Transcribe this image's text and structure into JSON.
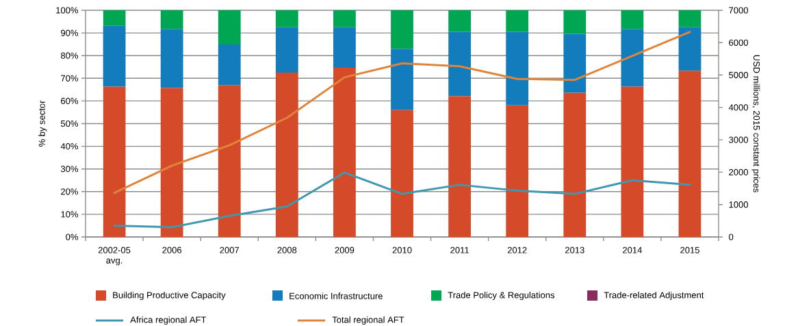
{
  "chart_data": {
    "type": "bar",
    "stacked": true,
    "categories": [
      "2002-05 avg.",
      "2006",
      "2007",
      "2008",
      "2009",
      "2010",
      "2011",
      "2012",
      "2013",
      "2014",
      "2015"
    ],
    "series": [
      {
        "name": "Building Productive Capacity",
        "color": "#d54b2a",
        "values": [
          66.3,
          65.7,
          67.0,
          72.5,
          74.6,
          56.0,
          62.1,
          58.1,
          63.6,
          66.3,
          73.3
        ]
      },
      {
        "name": "Economic Infrastructure",
        "color": "#127cbd",
        "values": [
          26.8,
          26.1,
          17.9,
          20.0,
          17.9,
          27.0,
          28.3,
          32.3,
          26.0,
          25.5,
          19.2
        ]
      },
      {
        "name": "Trade Policy & Regulations",
        "color": "#00a651",
        "values": [
          6.9,
          8.2,
          15.1,
          7.5,
          7.5,
          17.0,
          9.6,
          9.6,
          10.4,
          8.2,
          7.5
        ]
      },
      {
        "name": "Trade-related Adjustment",
        "color": "#8b2d5a",
        "values": [
          0,
          0,
          0,
          0,
          0,
          0,
          0,
          0,
          0,
          0,
          0
        ]
      },
      {
        "name": "Africa regional AFT",
        "color": "#3f98b0",
        "type": "line",
        "axis": "y2",
        "values": [
          350,
          300,
          650,
          940,
          1990,
          1330,
          1610,
          1430,
          1330,
          1750,
          1610
        ]
      },
      {
        "name": "Total regional AFT",
        "color": "#e0843a",
        "type": "line",
        "axis": "y2",
        "values": [
          1360,
          2200,
          2830,
          3680,
          4930,
          5360,
          5270,
          4880,
          4850,
          5590,
          6330
        ]
      }
    ],
    "ylabel": "% by sector",
    "y2label": "USD millions, 2015 constant prices",
    "ylim": [
      0,
      100
    ],
    "yticks": [
      {
        "value": 0,
        "label": "0%"
      },
      {
        "value": 10,
        "label": "10%"
      },
      {
        "value": 20,
        "label": "20%"
      },
      {
        "value": 30,
        "label": "30%"
      },
      {
        "value": 40,
        "label": "40%"
      },
      {
        "value": 50,
        "label": "50%"
      },
      {
        "value": 60,
        "label": "60%"
      },
      {
        "value": 70,
        "label": "70%"
      },
      {
        "value": 80,
        "label": "80%"
      },
      {
        "value": 90,
        "label": "90%"
      },
      {
        "value": 100,
        "label": "100%"
      }
    ],
    "y2lim": [
      0,
      7000
    ],
    "y2ticks": [
      0,
      1000,
      2000,
      3000,
      4000,
      5000,
      6000,
      7000
    ],
    "grid": "y",
    "legend": "bottom"
  }
}
